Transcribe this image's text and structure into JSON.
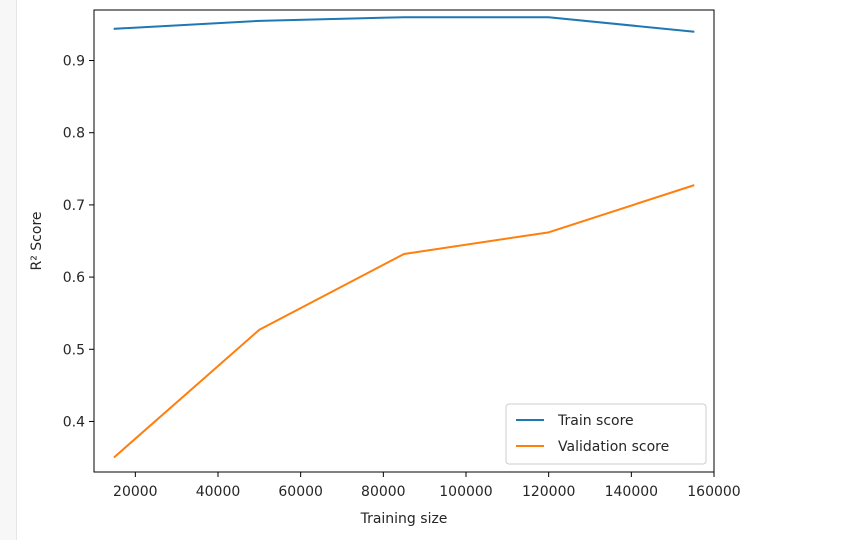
{
  "chart_data": {
    "type": "line",
    "title": "",
    "xlabel": "Training size",
    "ylabel": "R² Score",
    "x": [
      15000,
      50000,
      85000,
      120000,
      155000
    ],
    "xlim": [
      10000,
      160000
    ],
    "ylim": [
      0.33,
      0.97
    ],
    "x_ticks": [
      20000,
      40000,
      60000,
      80000,
      100000,
      120000,
      140000,
      160000
    ],
    "x_tick_labels": [
      "20000",
      "40000",
      "60000",
      "80000",
      "100000",
      "120000",
      "140000",
      "160000"
    ],
    "y_ticks": [
      0.4,
      0.5,
      0.6,
      0.7,
      0.8,
      0.9
    ],
    "y_tick_labels": [
      "0.4",
      "0.5",
      "0.6",
      "0.7",
      "0.8",
      "0.9"
    ],
    "grid": false,
    "legend_position": "lower-right",
    "series": [
      {
        "name": "Train score",
        "color": "#1f77b4",
        "values": [
          0.944,
          0.955,
          0.96,
          0.96,
          0.94
        ]
      },
      {
        "name": "Validation score",
        "color": "#ff7f0e",
        "values": [
          0.351,
          0.527,
          0.632,
          0.662,
          0.727
        ]
      }
    ]
  }
}
